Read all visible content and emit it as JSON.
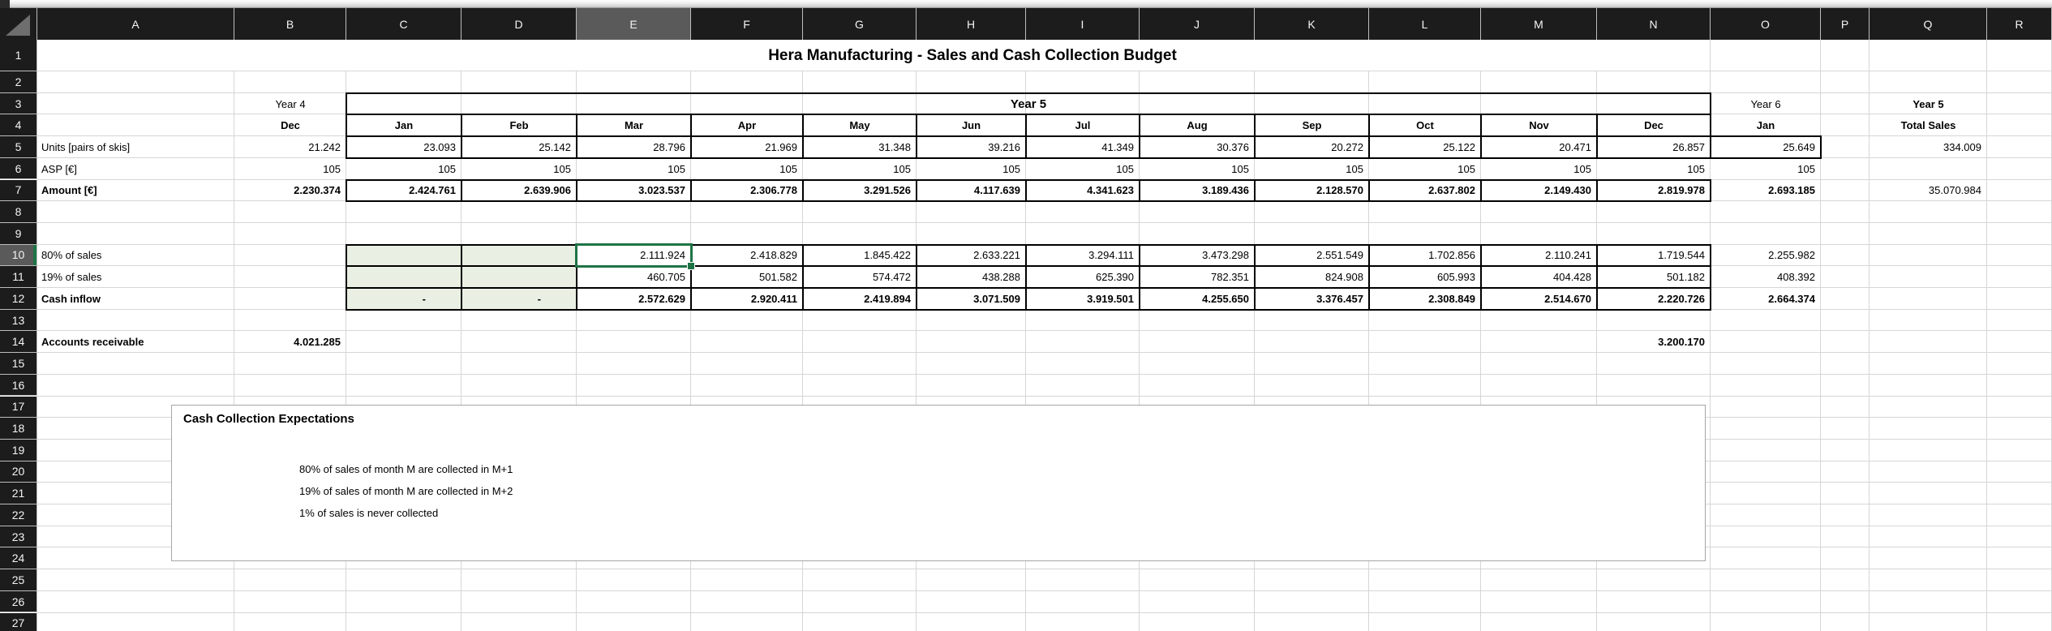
{
  "colors": {
    "accent_green": "#1E7446",
    "header_bg": "#1C1C1C",
    "header_selected_bg": "#5A5A5A",
    "grid_line": "#D6D6D6",
    "cell_border": "#000000",
    "green_input_fill": "#E9F0E3",
    "textbox_border": "#A6A6A6"
  },
  "sheet": {
    "columns": [
      "A",
      "B",
      "C",
      "D",
      "E",
      "F",
      "G",
      "H",
      "I",
      "J",
      "K",
      "L",
      "M",
      "N",
      "O",
      "P",
      "Q",
      "R"
    ],
    "visible_rows": 27,
    "selection": "E10",
    "title": "Hera Manufacturing - Sales and Cash Collection Budget",
    "year5_banner": "Year 5",
    "cells": [
      [
        "B3",
        "Year 4",
        "c",
        0
      ],
      [
        "O3",
        "Year 6",
        "c",
        0
      ],
      [
        "Q3",
        "Year 5",
        "c",
        1
      ],
      [
        "B4",
        "Dec",
        "c",
        1
      ],
      [
        "C4",
        "Jan",
        "c",
        1
      ],
      [
        "D4",
        "Feb",
        "c",
        1
      ],
      [
        "E4",
        "Mar",
        "c",
        1
      ],
      [
        "F4",
        "Apr",
        "c",
        1
      ],
      [
        "G4",
        "May",
        "c",
        1
      ],
      [
        "H4",
        "Jun",
        "c",
        1
      ],
      [
        "I4",
        "Jul",
        "c",
        1
      ],
      [
        "J4",
        "Aug",
        "c",
        1
      ],
      [
        "K4",
        "Sep",
        "c",
        1
      ],
      [
        "L4",
        "Oct",
        "c",
        1
      ],
      [
        "M4",
        "Nov",
        "c",
        1
      ],
      [
        "N4",
        "Dec",
        "c",
        1
      ],
      [
        "O4",
        "Jan",
        "c",
        1
      ],
      [
        "Q4",
        "Total Sales",
        "c",
        1
      ],
      [
        "A5",
        "Units [pairs of skis]",
        "l",
        0
      ],
      [
        "B5",
        "21.242",
        "r",
        0
      ],
      [
        "C5",
        "23.093",
        "r",
        0
      ],
      [
        "D5",
        "25.142",
        "r",
        0
      ],
      [
        "E5",
        "28.796",
        "r",
        0
      ],
      [
        "F5",
        "21.969",
        "r",
        0
      ],
      [
        "G5",
        "31.348",
        "r",
        0
      ],
      [
        "H5",
        "39.216",
        "r",
        0
      ],
      [
        "I5",
        "41.349",
        "r",
        0
      ],
      [
        "J5",
        "30.376",
        "r",
        0
      ],
      [
        "K5",
        "20.272",
        "r",
        0
      ],
      [
        "L5",
        "25.122",
        "r",
        0
      ],
      [
        "M5",
        "20.471",
        "r",
        0
      ],
      [
        "N5",
        "26.857",
        "r",
        0
      ],
      [
        "O5",
        "25.649",
        "r",
        0
      ],
      [
        "Q5",
        "334.009",
        "r",
        0
      ],
      [
        "A6",
        "ASP [€]",
        "l",
        0
      ],
      [
        "B6",
        "105",
        "r",
        0
      ],
      [
        "C6",
        "105",
        "r",
        0
      ],
      [
        "D6",
        "105",
        "r",
        0
      ],
      [
        "E6",
        "105",
        "r",
        0
      ],
      [
        "F6",
        "105",
        "r",
        0
      ],
      [
        "G6",
        "105",
        "r",
        0
      ],
      [
        "H6",
        "105",
        "r",
        0
      ],
      [
        "I6",
        "105",
        "r",
        0
      ],
      [
        "J6",
        "105",
        "r",
        0
      ],
      [
        "K6",
        "105",
        "r",
        0
      ],
      [
        "L6",
        "105",
        "r",
        0
      ],
      [
        "M6",
        "105",
        "r",
        0
      ],
      [
        "N6",
        "105",
        "r",
        0
      ],
      [
        "O6",
        "105",
        "r",
        0
      ],
      [
        "A7",
        "Amount [€]",
        "l",
        1
      ],
      [
        "B7",
        "2.230.374",
        "r",
        1
      ],
      [
        "C7",
        "2.424.761",
        "r",
        1
      ],
      [
        "D7",
        "2.639.906",
        "r",
        1
      ],
      [
        "E7",
        "3.023.537",
        "r",
        1
      ],
      [
        "F7",
        "2.306.778",
        "r",
        1
      ],
      [
        "G7",
        "3.291.526",
        "r",
        1
      ],
      [
        "H7",
        "4.117.639",
        "r",
        1
      ],
      [
        "I7",
        "4.341.623",
        "r",
        1
      ],
      [
        "J7",
        "3.189.436",
        "r",
        1
      ],
      [
        "K7",
        "2.128.570",
        "r",
        1
      ],
      [
        "L7",
        "2.637.802",
        "r",
        1
      ],
      [
        "M7",
        "2.149.430",
        "r",
        1
      ],
      [
        "N7",
        "2.819.978",
        "r",
        1
      ],
      [
        "O7",
        "2.693.185",
        "r",
        1
      ],
      [
        "Q7",
        "35.070.984",
        "r",
        0
      ],
      [
        "A10",
        "80% of sales",
        "l",
        0
      ],
      [
        "E10",
        "2.111.924",
        "r",
        0
      ],
      [
        "F10",
        "2.418.829",
        "r",
        0
      ],
      [
        "G10",
        "1.845.422",
        "r",
        0
      ],
      [
        "H10",
        "2.633.221",
        "r",
        0
      ],
      [
        "I10",
        "3.294.111",
        "r",
        0
      ],
      [
        "J10",
        "3.473.298",
        "r",
        0
      ],
      [
        "K10",
        "2.551.549",
        "r",
        0
      ],
      [
        "L10",
        "1.702.856",
        "r",
        0
      ],
      [
        "M10",
        "2.110.241",
        "r",
        0
      ],
      [
        "N10",
        "1.719.544",
        "r",
        0
      ],
      [
        "O10",
        "2.255.982",
        "r",
        0
      ],
      [
        "A11",
        "19% of sales",
        "l",
        0
      ],
      [
        "E11",
        "460.705",
        "r",
        0
      ],
      [
        "F11",
        "501.582",
        "r",
        0
      ],
      [
        "G11",
        "574.472",
        "r",
        0
      ],
      [
        "H11",
        "438.288",
        "r",
        0
      ],
      [
        "I11",
        "625.390",
        "r",
        0
      ],
      [
        "J11",
        "782.351",
        "r",
        0
      ],
      [
        "K11",
        "824.908",
        "r",
        0
      ],
      [
        "L11",
        "605.993",
        "r",
        0
      ],
      [
        "M11",
        "404.428",
        "r",
        0
      ],
      [
        "N11",
        "501.182",
        "r",
        0
      ],
      [
        "O11",
        "408.392",
        "r",
        0
      ],
      [
        "A12",
        "Cash inflow",
        "l",
        1
      ],
      [
        "C12",
        "-",
        "d",
        0
      ],
      [
        "D12",
        "-",
        "d",
        0
      ],
      [
        "E12",
        "2.572.629",
        "r",
        1
      ],
      [
        "F12",
        "2.920.411",
        "r",
        1
      ],
      [
        "G12",
        "2.419.894",
        "r",
        1
      ],
      [
        "H12",
        "3.071.509",
        "r",
        1
      ],
      [
        "I12",
        "3.919.501",
        "r",
        1
      ],
      [
        "J12",
        "4.255.650",
        "r",
        1
      ],
      [
        "K12",
        "3.376.457",
        "r",
        1
      ],
      [
        "L12",
        "2.308.849",
        "r",
        1
      ],
      [
        "M12",
        "2.514.670",
        "r",
        1
      ],
      [
        "N12",
        "2.220.726",
        "r",
        1
      ],
      [
        "O12",
        "2.664.374",
        "r",
        1
      ],
      [
        "A14",
        "Accounts receivable",
        "l",
        1
      ],
      [
        "B14",
        "4.021.285",
        "r",
        1
      ],
      [
        "N14",
        "3.200.170",
        "r",
        1
      ]
    ],
    "textbox": {
      "title": "Cash Collection Expectations",
      "lines": [
        "80% of sales of month M are collected in M+1",
        "19% of sales of month M are collected in M+2",
        "1% of sales is never collected"
      ]
    }
  }
}
